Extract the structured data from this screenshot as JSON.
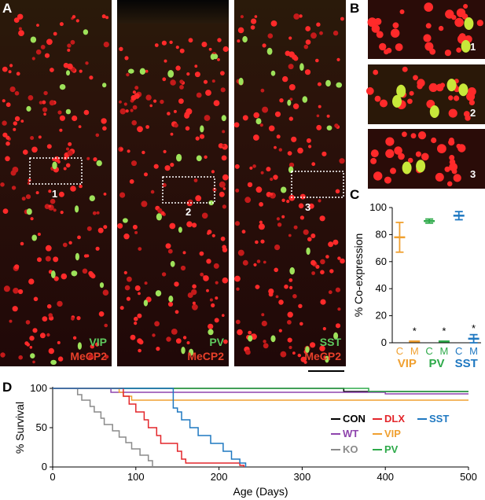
{
  "panels": {
    "A": "A",
    "B": "B",
    "C": "C",
    "D": "D"
  },
  "micrographs": [
    {
      "marker": "VIP",
      "counterstain": "MeCP2",
      "roi": "1"
    },
    {
      "marker": "PV",
      "counterstain": "MeCP2",
      "roi": "2"
    },
    {
      "marker": "SST",
      "counterstain": "MeCP2",
      "roi": "3"
    }
  ],
  "insets": [
    "1",
    "2",
    "3"
  ],
  "colors": {
    "green_label": "#5ec95e",
    "red_label": "#e8402a",
    "vip": "#f0a030",
    "pv": "#2eaa4a",
    "sst": "#1f78c1",
    "con": "#000000",
    "dlx": "#e3262b",
    "wt": "#8e44ad",
    "ko": "#8a8a8a"
  },
  "chart_data": [
    {
      "type": "scatter",
      "panel": "C",
      "ylabel": "% Co-expression",
      "ylim": [
        0,
        100
      ],
      "yticks": [
        "0",
        "20",
        "40",
        "60",
        "80",
        "100"
      ],
      "groups": [
        {
          "name": "VIP",
          "sub": [
            "C",
            "M"
          ],
          "means": [
            78,
            1
          ],
          "errors": [
            11,
            0.5
          ],
          "significance": [
            "",
            "*"
          ]
        },
        {
          "name": "PV",
          "sub": [
            "C",
            "M"
          ],
          "means": [
            90,
            1
          ],
          "errors": [
            1.5,
            0.5
          ],
          "significance": [
            "",
            "*"
          ]
        },
        {
          "name": "SST",
          "sub": [
            "C",
            "M"
          ],
          "means": [
            94,
            3
          ],
          "errors": [
            3,
            3
          ],
          "significance": [
            "",
            "*"
          ]
        }
      ]
    },
    {
      "type": "line",
      "panel": "D",
      "xlabel": "Age (Days)",
      "ylabel": "% Survival",
      "xlim": [
        0,
        500
      ],
      "ylim": [
        0,
        100
      ],
      "xticks": [
        "0",
        "100",
        "200",
        "300",
        "400",
        "500"
      ],
      "yticks": [
        "0",
        "50",
        "100"
      ],
      "legend": [
        "CON",
        "DLX",
        "SST",
        "WT",
        "VIP",
        "KO",
        "PV"
      ],
      "series": [
        {
          "name": "CON",
          "x": [
            0,
            350,
            350,
            500
          ],
          "y": [
            100,
            100,
            96,
            96
          ]
        },
        {
          "name": "WT",
          "x": [
            0,
            70,
            70,
            400,
            400,
            500
          ],
          "y": [
            100,
            100,
            95,
            95,
            93,
            93
          ]
        },
        {
          "name": "PV",
          "x": [
            0,
            380,
            380,
            500
          ],
          "y": [
            100,
            100,
            96,
            96
          ]
        },
        {
          "name": "VIP",
          "x": [
            0,
            80,
            80,
            85,
            85,
            95,
            95,
            500
          ],
          "y": [
            100,
            100,
            95,
            95,
            90,
            90,
            85,
            85
          ]
        },
        {
          "name": "KO",
          "x": [
            0,
            30,
            30,
            35,
            35,
            45,
            45,
            50,
            50,
            58,
            58,
            62,
            62,
            72,
            72,
            80,
            80,
            88,
            88,
            95,
            95,
            105,
            105,
            115,
            115,
            120,
            120
          ],
          "y": [
            100,
            100,
            92,
            92,
            85,
            85,
            77,
            77,
            70,
            70,
            62,
            62,
            54,
            54,
            46,
            46,
            38,
            38,
            31,
            31,
            23,
            23,
            15,
            15,
            8,
            8,
            0
          ]
        },
        {
          "name": "DLX",
          "x": [
            0,
            85,
            85,
            92,
            92,
            100,
            100,
            110,
            110,
            115,
            115,
            125,
            125,
            130,
            130,
            150,
            150,
            155,
            155,
            160,
            160,
            225,
            225,
            230,
            230
          ],
          "y": [
            100,
            100,
            90,
            90,
            80,
            80,
            70,
            70,
            60,
            60,
            50,
            50,
            40,
            40,
            30,
            30,
            20,
            20,
            10,
            10,
            5,
            5,
            2,
            2,
            0
          ]
        },
        {
          "name": "SST",
          "x": [
            0,
            145,
            145,
            150,
            150,
            155,
            155,
            165,
            165,
            175,
            175,
            190,
            190,
            205,
            205,
            215,
            215,
            225,
            225,
            232,
            232
          ],
          "y": [
            100,
            100,
            75,
            75,
            70,
            70,
            60,
            60,
            50,
            50,
            40,
            40,
            30,
            30,
            20,
            20,
            10,
            10,
            5,
            5,
            0
          ]
        }
      ]
    }
  ]
}
